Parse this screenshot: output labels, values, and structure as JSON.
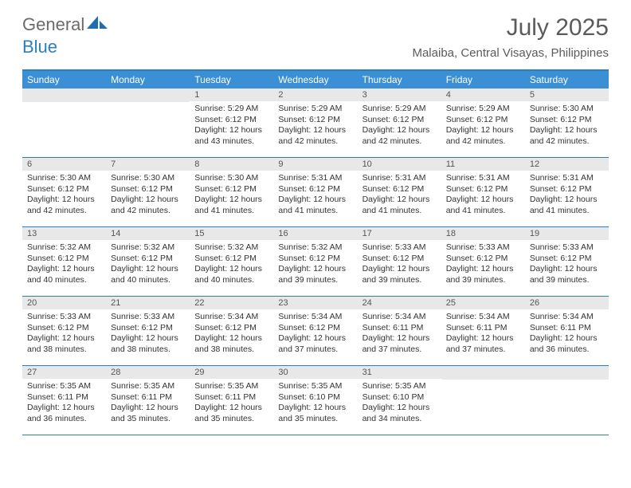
{
  "logo": {
    "general": "General",
    "blue": "Blue"
  },
  "title": {
    "month": "July 2025",
    "location": "Malaiba, Central Visayas, Philippines"
  },
  "weekdays": [
    "Sunday",
    "Monday",
    "Tuesday",
    "Wednesday",
    "Thursday",
    "Friday",
    "Saturday"
  ],
  "colors": {
    "accent": "#3b8fd4",
    "border": "#2a7fbf",
    "daynum_bg": "#e8e8e8"
  },
  "weeks": [
    [
      {
        "num": "",
        "sunrise": "",
        "sunset": "",
        "daylight": ""
      },
      {
        "num": "",
        "sunrise": "",
        "sunset": "",
        "daylight": ""
      },
      {
        "num": "1",
        "sunrise": "Sunrise: 5:29 AM",
        "sunset": "Sunset: 6:12 PM",
        "daylight": "Daylight: 12 hours and 43 minutes."
      },
      {
        "num": "2",
        "sunrise": "Sunrise: 5:29 AM",
        "sunset": "Sunset: 6:12 PM",
        "daylight": "Daylight: 12 hours and 42 minutes."
      },
      {
        "num": "3",
        "sunrise": "Sunrise: 5:29 AM",
        "sunset": "Sunset: 6:12 PM",
        "daylight": "Daylight: 12 hours and 42 minutes."
      },
      {
        "num": "4",
        "sunrise": "Sunrise: 5:29 AM",
        "sunset": "Sunset: 6:12 PM",
        "daylight": "Daylight: 12 hours and 42 minutes."
      },
      {
        "num": "5",
        "sunrise": "Sunrise: 5:30 AM",
        "sunset": "Sunset: 6:12 PM",
        "daylight": "Daylight: 12 hours and 42 minutes."
      }
    ],
    [
      {
        "num": "6",
        "sunrise": "Sunrise: 5:30 AM",
        "sunset": "Sunset: 6:12 PM",
        "daylight": "Daylight: 12 hours and 42 minutes."
      },
      {
        "num": "7",
        "sunrise": "Sunrise: 5:30 AM",
        "sunset": "Sunset: 6:12 PM",
        "daylight": "Daylight: 12 hours and 42 minutes."
      },
      {
        "num": "8",
        "sunrise": "Sunrise: 5:30 AM",
        "sunset": "Sunset: 6:12 PM",
        "daylight": "Daylight: 12 hours and 41 minutes."
      },
      {
        "num": "9",
        "sunrise": "Sunrise: 5:31 AM",
        "sunset": "Sunset: 6:12 PM",
        "daylight": "Daylight: 12 hours and 41 minutes."
      },
      {
        "num": "10",
        "sunrise": "Sunrise: 5:31 AM",
        "sunset": "Sunset: 6:12 PM",
        "daylight": "Daylight: 12 hours and 41 minutes."
      },
      {
        "num": "11",
        "sunrise": "Sunrise: 5:31 AM",
        "sunset": "Sunset: 6:12 PM",
        "daylight": "Daylight: 12 hours and 41 minutes."
      },
      {
        "num": "12",
        "sunrise": "Sunrise: 5:31 AM",
        "sunset": "Sunset: 6:12 PM",
        "daylight": "Daylight: 12 hours and 41 minutes."
      }
    ],
    [
      {
        "num": "13",
        "sunrise": "Sunrise: 5:32 AM",
        "sunset": "Sunset: 6:12 PM",
        "daylight": "Daylight: 12 hours and 40 minutes."
      },
      {
        "num": "14",
        "sunrise": "Sunrise: 5:32 AM",
        "sunset": "Sunset: 6:12 PM",
        "daylight": "Daylight: 12 hours and 40 minutes."
      },
      {
        "num": "15",
        "sunrise": "Sunrise: 5:32 AM",
        "sunset": "Sunset: 6:12 PM",
        "daylight": "Daylight: 12 hours and 40 minutes."
      },
      {
        "num": "16",
        "sunrise": "Sunrise: 5:32 AM",
        "sunset": "Sunset: 6:12 PM",
        "daylight": "Daylight: 12 hours and 39 minutes."
      },
      {
        "num": "17",
        "sunrise": "Sunrise: 5:33 AM",
        "sunset": "Sunset: 6:12 PM",
        "daylight": "Daylight: 12 hours and 39 minutes."
      },
      {
        "num": "18",
        "sunrise": "Sunrise: 5:33 AM",
        "sunset": "Sunset: 6:12 PM",
        "daylight": "Daylight: 12 hours and 39 minutes."
      },
      {
        "num": "19",
        "sunrise": "Sunrise: 5:33 AM",
        "sunset": "Sunset: 6:12 PM",
        "daylight": "Daylight: 12 hours and 39 minutes."
      }
    ],
    [
      {
        "num": "20",
        "sunrise": "Sunrise: 5:33 AM",
        "sunset": "Sunset: 6:12 PM",
        "daylight": "Daylight: 12 hours and 38 minutes."
      },
      {
        "num": "21",
        "sunrise": "Sunrise: 5:33 AM",
        "sunset": "Sunset: 6:12 PM",
        "daylight": "Daylight: 12 hours and 38 minutes."
      },
      {
        "num": "22",
        "sunrise": "Sunrise: 5:34 AM",
        "sunset": "Sunset: 6:12 PM",
        "daylight": "Daylight: 12 hours and 38 minutes."
      },
      {
        "num": "23",
        "sunrise": "Sunrise: 5:34 AM",
        "sunset": "Sunset: 6:12 PM",
        "daylight": "Daylight: 12 hours and 37 minutes."
      },
      {
        "num": "24",
        "sunrise": "Sunrise: 5:34 AM",
        "sunset": "Sunset: 6:11 PM",
        "daylight": "Daylight: 12 hours and 37 minutes."
      },
      {
        "num": "25",
        "sunrise": "Sunrise: 5:34 AM",
        "sunset": "Sunset: 6:11 PM",
        "daylight": "Daylight: 12 hours and 37 minutes."
      },
      {
        "num": "26",
        "sunrise": "Sunrise: 5:34 AM",
        "sunset": "Sunset: 6:11 PM",
        "daylight": "Daylight: 12 hours and 36 minutes."
      }
    ],
    [
      {
        "num": "27",
        "sunrise": "Sunrise: 5:35 AM",
        "sunset": "Sunset: 6:11 PM",
        "daylight": "Daylight: 12 hours and 36 minutes."
      },
      {
        "num": "28",
        "sunrise": "Sunrise: 5:35 AM",
        "sunset": "Sunset: 6:11 PM",
        "daylight": "Daylight: 12 hours and 35 minutes."
      },
      {
        "num": "29",
        "sunrise": "Sunrise: 5:35 AM",
        "sunset": "Sunset: 6:11 PM",
        "daylight": "Daylight: 12 hours and 35 minutes."
      },
      {
        "num": "30",
        "sunrise": "Sunrise: 5:35 AM",
        "sunset": "Sunset: 6:10 PM",
        "daylight": "Daylight: 12 hours and 35 minutes."
      },
      {
        "num": "31",
        "sunrise": "Sunrise: 5:35 AM",
        "sunset": "Sunset: 6:10 PM",
        "daylight": "Daylight: 12 hours and 34 minutes."
      },
      {
        "num": "",
        "sunrise": "",
        "sunset": "",
        "daylight": ""
      },
      {
        "num": "",
        "sunrise": "",
        "sunset": "",
        "daylight": ""
      }
    ]
  ]
}
